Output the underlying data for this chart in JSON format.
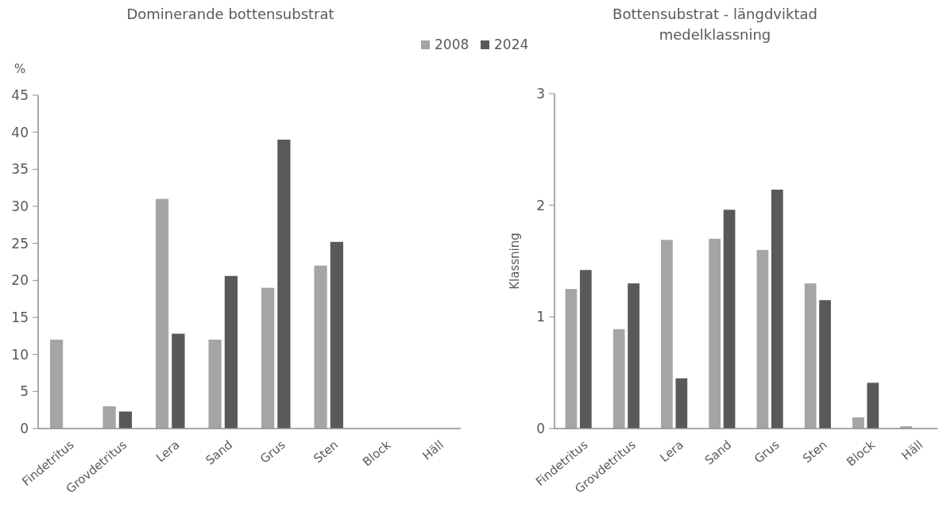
{
  "chart_data": [
    {
      "type": "bar",
      "title": "Dominerande bottensubstrat",
      "ylabel": "%",
      "categories": [
        "Findetritus",
        "Grovdetritus",
        "Lera",
        "Sand",
        "Grus",
        "Sten",
        "Block",
        "Häll"
      ],
      "series": [
        {
          "name": "2008",
          "color": "#a5a5a5",
          "values": [
            12,
            3,
            31,
            12,
            19,
            22,
            0,
            0
          ]
        },
        {
          "name": "2024",
          "color": "#595959",
          "values": [
            0,
            2.3,
            12.8,
            20.6,
            39,
            25.2,
            0,
            0
          ]
        }
      ],
      "ylim": [
        0,
        45
      ],
      "yticks": [
        0,
        5,
        10,
        15,
        20,
        25,
        30,
        35,
        40,
        45
      ],
      "grid": false,
      "legend": "top right"
    },
    {
      "type": "bar",
      "title": "Bottensubstrat - längdviktad medelklassning",
      "ylabel": "Klassning",
      "categories": [
        "Findetritus",
        "Grovdetritus",
        "Lera",
        "Sand",
        "Grus",
        "Sten",
        "Block",
        "Häll"
      ],
      "series": [
        {
          "color": "#a5a5a5",
          "values": [
            1.25,
            0.89,
            1.69,
            1.7,
            1.6,
            1.3,
            0.1,
            0.02
          ]
        },
        {
          "color": "#595959",
          "values": [
            1.42,
            1.3,
            0.45,
            1.96,
            2.14,
            1.15,
            0.41,
            0
          ]
        }
      ],
      "ylim": [
        0,
        3
      ],
      "yticks": [
        0,
        1,
        2,
        3
      ],
      "grid": false,
      "legend": false
    }
  ]
}
